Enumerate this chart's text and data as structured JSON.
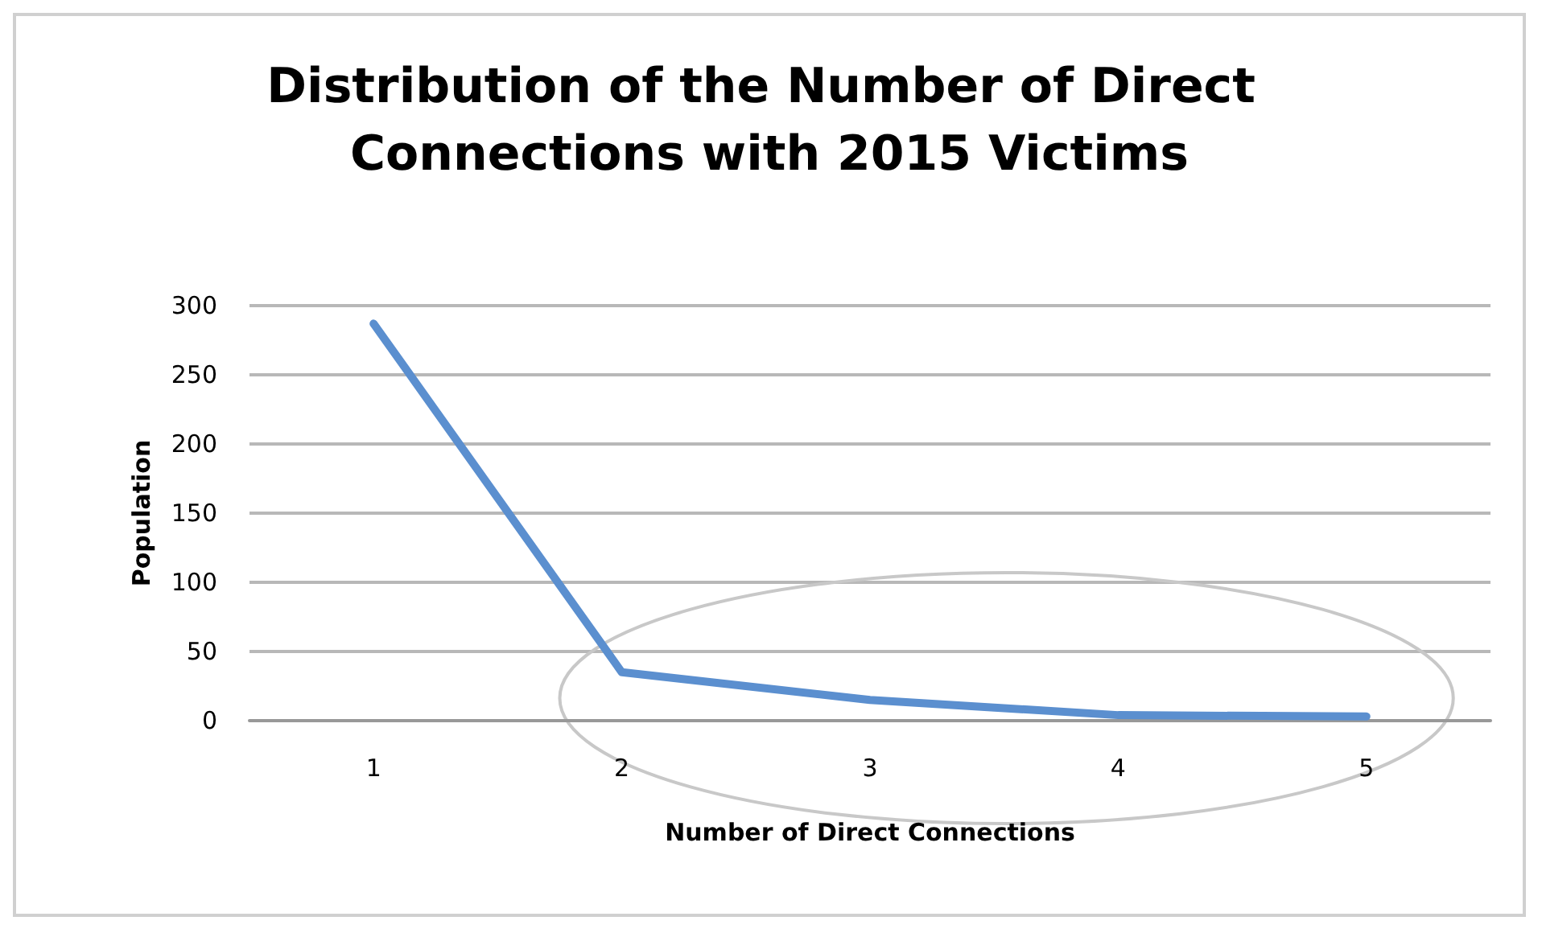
{
  "chart_data": {
    "type": "line",
    "title": "Distribution of the Number of Direct Connections with 2015 Victims",
    "xlabel": "Number of Direct Connections",
    "ylabel": "Population",
    "categories": [
      "1",
      "2",
      "3",
      "4",
      "5"
    ],
    "series": [
      {
        "color": "#5b8fcf",
        "values": [
          287,
          35,
          15,
          4,
          3
        ]
      }
    ],
    "ylim": [
      0,
      300
    ],
    "yticks": [
      0,
      50,
      100,
      150,
      200,
      250,
      300
    ],
    "grid": "y",
    "marker": "none",
    "line_style": "solid"
  }
}
